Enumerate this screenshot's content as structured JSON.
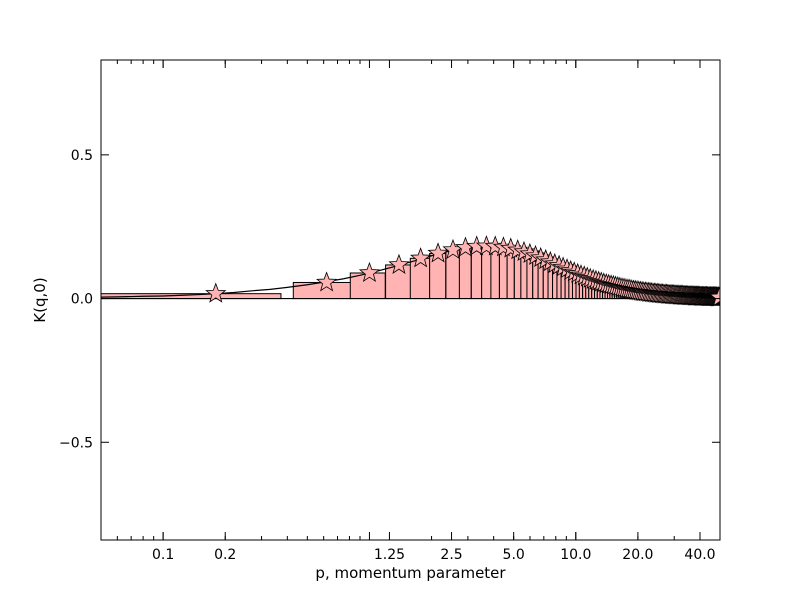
{
  "chart_data": {
    "type": "bar",
    "title": "",
    "xlabel": "p, momentum parameter",
    "ylabel": "K(q,0)",
    "xscale": "log",
    "xlim": [
      0.05,
      50
    ],
    "ylim": [
      -0.84,
      0.83
    ],
    "grid": false,
    "legend": "none",
    "x_ticks": [
      {
        "value": 0.1,
        "label": "0.1"
      },
      {
        "value": 0.2,
        "label": "0.2"
      },
      {
        "value": 1.25,
        "label": "1.25"
      },
      {
        "value": 2.5,
        "label": "2.5"
      },
      {
        "value": 5.0,
        "label": "5.0"
      },
      {
        "value": 10.0,
        "label": "10.0"
      },
      {
        "value": 20.0,
        "label": "20.0"
      },
      {
        "value": 40.0,
        "label": "40.0"
      }
    ],
    "y_ticks": [
      {
        "value": -0.5,
        "label": "−0.5"
      },
      {
        "value": 0.0,
        "label": "0.0"
      },
      {
        "value": 0.5,
        "label": "0.5"
      }
    ],
    "series": [
      {
        "kind": "bars",
        "x": [
          0.18,
          0.62,
          1.0,
          1.39,
          1.77,
          2.15,
          2.54,
          2.92,
          3.31,
          3.69,
          4.07,
          4.46,
          4.84,
          5.23,
          5.61,
          5.99,
          6.38,
          6.76,
          7.15,
          7.53,
          7.91,
          8.3,
          8.68,
          9.07,
          9.45,
          9.83,
          10.22,
          10.6,
          10.99,
          11.37,
          11.75,
          12.14,
          12.52,
          12.91,
          13.29,
          13.67,
          14.06,
          14.44,
          14.83,
          15.21,
          15.59,
          15.98,
          16.36,
          16.75,
          17.13,
          17.51,
          17.9,
          18.28,
          18.67,
          19.05,
          19.43,
          19.82,
          20.2,
          20.59,
          20.97,
          21.35,
          21.74,
          22.12,
          22.51,
          22.89,
          23.27,
          23.66,
          24.04,
          24.43,
          24.81,
          25.19,
          25.58,
          25.96,
          26.35,
          26.73,
          27.11,
          27.5,
          27.88,
          28.27,
          28.65,
          29.03,
          29.42,
          29.8,
          30.19,
          30.57,
          30.95,
          31.34,
          31.72,
          32.11,
          32.49,
          32.87,
          33.26,
          33.64,
          34.03,
          34.41,
          34.79,
          35.18,
          35.56,
          35.95,
          36.33,
          36.71,
          37.1,
          37.48,
          37.87,
          38.25,
          38.63,
          39.02,
          39.4,
          39.79,
          40.17,
          40.55,
          40.94,
          41.32,
          41.71,
          42.09,
          42.47,
          42.86,
          43.24,
          43.63,
          44.01,
          44.39,
          44.78,
          45.16,
          45.55,
          45.93,
          46.31,
          46.7,
          47.08,
          47.47,
          47.85,
          48.23,
          48.62,
          49.0,
          49.39,
          49.77
        ],
        "width": 0.385,
        "values": [
          0.017,
          0.056,
          0.089,
          0.117,
          0.14,
          0.157,
          0.169,
          0.177,
          0.181,
          0.182,
          0.181,
          0.178,
          0.174,
          0.168,
          0.162,
          0.155,
          0.148,
          0.141,
          0.134,
          0.127,
          0.12,
          0.114,
          0.108,
          0.102,
          0.096,
          0.091,
          0.086,
          0.081,
          0.077,
          0.073,
          0.069,
          0.065,
          0.062,
          0.059,
          0.056,
          0.053,
          0.05,
          0.048,
          0.046,
          0.044,
          0.042,
          0.04,
          0.038,
          0.036,
          0.035,
          0.033,
          0.032,
          0.031,
          0.029,
          0.028,
          0.027,
          0.026,
          0.025,
          0.024,
          0.023,
          0.022,
          0.022,
          0.021,
          0.02,
          0.02,
          0.019,
          0.018,
          0.018,
          0.017,
          0.017,
          0.016,
          0.016,
          0.015,
          0.015,
          0.014,
          0.014,
          0.014,
          0.013,
          0.013,
          0.013,
          0.012,
          0.012,
          0.012,
          0.011,
          0.011,
          0.011,
          0.011,
          0.01,
          0.01,
          0.01,
          0.01,
          0.009,
          0.009,
          0.009,
          0.009,
          0.009,
          0.008,
          0.008,
          0.008,
          0.008,
          0.008,
          0.008,
          0.007,
          0.007,
          0.007,
          0.007,
          0.007,
          0.007,
          0.007,
          0.006,
          0.006,
          0.006,
          0.006,
          0.006,
          0.006,
          0.006,
          0.006,
          0.006,
          0.005,
          0.005,
          0.005,
          0.005,
          0.005,
          0.005,
          0.005,
          0.005,
          0.005,
          0.005,
          0.005,
          0.005,
          0.004,
          0.004,
          0.004,
          0.004,
          0.004
        ],
        "fill": "#ffb3b3",
        "edge": "#000000"
      },
      {
        "kind": "markers",
        "marker": "star",
        "x": [
          0.18,
          0.62,
          1.0,
          1.39,
          1.77,
          2.15,
          2.54,
          2.92,
          3.31,
          3.69,
          4.07,
          4.46,
          4.84,
          5.23,
          5.61,
          5.99,
          6.38,
          6.76,
          7.15,
          7.53,
          7.91,
          8.3,
          8.68,
          9.07,
          9.45,
          9.83,
          10.22,
          10.6,
          10.99,
          11.37,
          11.75,
          12.14,
          12.52,
          12.91,
          13.29,
          13.67,
          14.06,
          14.44,
          14.83,
          15.21,
          15.59,
          15.98,
          16.36,
          16.75,
          17.13,
          17.51,
          17.9,
          18.28,
          18.67,
          19.05,
          19.43,
          19.82,
          20.2,
          20.59,
          20.97,
          21.35,
          21.74,
          22.12,
          22.51,
          22.89,
          23.27,
          23.66,
          24.04,
          24.43,
          24.81,
          25.19,
          25.58,
          25.96,
          26.35,
          26.73,
          27.11,
          27.5,
          27.88,
          28.27,
          28.65,
          29.03,
          29.42,
          29.8,
          30.19,
          30.57,
          30.95,
          31.34,
          31.72,
          32.11,
          32.49,
          32.87,
          33.26,
          33.64,
          34.03,
          34.41,
          34.79,
          35.18,
          35.56,
          35.95,
          36.33,
          36.71,
          37.1,
          37.48,
          37.87,
          38.25,
          38.63,
          39.02,
          39.4,
          39.79,
          40.17,
          40.55,
          40.94,
          41.32,
          41.71,
          42.09,
          42.47,
          42.86,
          43.24,
          43.63,
          44.01,
          44.39,
          44.78,
          45.16,
          45.55,
          45.93,
          46.31,
          46.7,
          47.08,
          47.47,
          47.85,
          48.23,
          48.62,
          49.0,
          49.39,
          49.77
        ],
        "values": [
          0.017,
          0.056,
          0.089,
          0.117,
          0.14,
          0.157,
          0.169,
          0.177,
          0.181,
          0.182,
          0.181,
          0.178,
          0.174,
          0.168,
          0.162,
          0.155,
          0.148,
          0.141,
          0.134,
          0.127,
          0.12,
          0.114,
          0.108,
          0.102,
          0.096,
          0.091,
          0.086,
          0.081,
          0.077,
          0.073,
          0.069,
          0.065,
          0.062,
          0.059,
          0.056,
          0.053,
          0.05,
          0.048,
          0.046,
          0.044,
          0.042,
          0.04,
          0.038,
          0.036,
          0.035,
          0.033,
          0.032,
          0.031,
          0.029,
          0.028,
          0.027,
          0.026,
          0.025,
          0.024,
          0.023,
          0.022,
          0.022,
          0.021,
          0.02,
          0.02,
          0.019,
          0.018,
          0.018,
          0.017,
          0.017,
          0.016,
          0.016,
          0.015,
          0.015,
          0.014,
          0.014,
          0.014,
          0.013,
          0.013,
          0.013,
          0.012,
          0.012,
          0.012,
          0.011,
          0.011,
          0.011,
          0.011,
          0.01,
          0.01,
          0.01,
          0.01,
          0.009,
          0.009,
          0.009,
          0.009,
          0.009,
          0.008,
          0.008,
          0.008,
          0.008,
          0.008,
          0.008,
          0.007,
          0.007,
          0.007,
          0.007,
          0.007,
          0.007,
          0.007,
          0.006,
          0.006,
          0.006,
          0.006,
          0.006,
          0.006,
          0.006,
          0.006,
          0.006,
          0.005,
          0.005,
          0.005,
          0.005,
          0.005,
          0.005,
          0.005,
          0.005,
          0.005,
          0.005,
          0.005,
          0.005,
          0.004,
          0.004,
          0.004,
          0.004,
          0.004
        ],
        "fill": "#ffb3b3",
        "edge": "#000000"
      },
      {
        "kind": "line",
        "x": [
          0.05,
          0.06,
          0.07,
          0.08,
          0.1,
          0.12,
          0.15,
          0.18,
          0.22,
          0.27,
          0.33,
          0.4,
          0.5,
          0.6,
          0.75,
          0.9,
          1.1,
          1.35,
          1.65,
          2.0,
          2.4,
          2.9,
          3.5,
          4.2,
          5.0,
          6.0,
          7.3,
          8.8,
          10.6,
          12.8,
          15.5,
          18.7,
          22.6,
          27.3,
          33.0,
          40.0,
          50.0
        ],
        "values": [
          0.005,
          0.006,
          0.007,
          0.008,
          0.009,
          0.011,
          0.014,
          0.017,
          0.021,
          0.027,
          0.032,
          0.039,
          0.048,
          0.057,
          0.069,
          0.081,
          0.096,
          0.113,
          0.131,
          0.149,
          0.164,
          0.176,
          0.182,
          0.18,
          0.172,
          0.157,
          0.139,
          0.119,
          0.1,
          0.082,
          0.066,
          0.053,
          0.042,
          0.033,
          0.025,
          0.02,
          0.014
        ],
        "color": "#000000"
      }
    ]
  }
}
